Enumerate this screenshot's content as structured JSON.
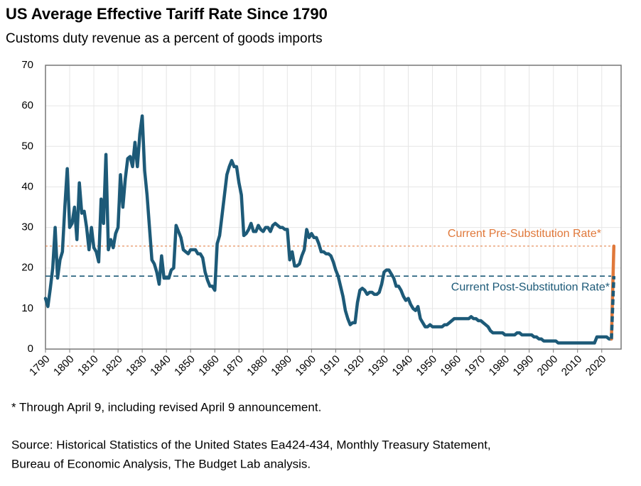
{
  "chart_data": {
    "type": "line",
    "title": "US Average Effective Tariff Rate Since 1790",
    "subtitle": "Customs duty revenue as a percent of goods imports",
    "footnote": "* Through April 9, including revised April 9 announcement.",
    "source": [
      "Source: Historical Statistics of the United States Ea424-434, Monthly Treasury Statement,",
      "Bureau of  Economic Analysis, The Budget Lab analysis."
    ],
    "xlim": [
      1790,
      2028
    ],
    "ylim": [
      0,
      70
    ],
    "xticks": [
      1790,
      1800,
      1810,
      1820,
      1830,
      1840,
      1850,
      1860,
      1870,
      1880,
      1890,
      1900,
      1910,
      1920,
      1930,
      1940,
      1950,
      1960,
      1970,
      1980,
      1990,
      2000,
      2010,
      2020
    ],
    "yticks": [
      0,
      10,
      20,
      30,
      40,
      50,
      60,
      70
    ],
    "grid": true,
    "reference_lines": [
      {
        "value": 25.4,
        "label": "Current Pre-Substitution Rate*",
        "color": "#e0783a",
        "style": "dotted",
        "label_position": "above"
      },
      {
        "value": 18,
        "label": "Current Post-Substitution Rate*",
        "color": "#1d5a78",
        "style": "dashed",
        "label_position": "below"
      }
    ],
    "series": [
      {
        "color": "#1d5a78",
        "style": "solid",
        "x": [
          1790,
          1791,
          1792,
          1793,
          1794,
          1795,
          1796,
          1797,
          1798,
          1799,
          1800,
          1801,
          1802,
          1803,
          1804,
          1805,
          1806,
          1807,
          1808,
          1809,
          1810,
          1811,
          1812,
          1813,
          1814,
          1815,
          1816,
          1817,
          1818,
          1819,
          1820,
          1821,
          1822,
          1823,
          1824,
          1825,
          1826,
          1827,
          1828,
          1829,
          1830,
          1831,
          1832,
          1833,
          1834,
          1835,
          1836,
          1837,
          1838,
          1839,
          1840,
          1841,
          1842,
          1843,
          1844,
          1845,
          1846,
          1847,
          1848,
          1849,
          1850,
          1851,
          1852,
          1853,
          1854,
          1855,
          1856,
          1857,
          1858,
          1859,
          1860,
          1861,
          1862,
          1863,
          1864,
          1865,
          1866,
          1867,
          1868,
          1869,
          1870,
          1871,
          1872,
          1873,
          1874,
          1875,
          1876,
          1877,
          1878,
          1879,
          1880,
          1881,
          1882,
          1883,
          1884,
          1885,
          1886,
          1887,
          1888,
          1889,
          1890,
          1891,
          1892,
          1893,
          1894,
          1895,
          1896,
          1897,
          1898,
          1899,
          1900,
          1901,
          1902,
          1903,
          1904,
          1905,
          1906,
          1907,
          1908,
          1909,
          1910,
          1911,
          1912,
          1913,
          1914,
          1915,
          1916,
          1917,
          1918,
          1919,
          1920,
          1921,
          1922,
          1923,
          1924,
          1925,
          1926,
          1927,
          1928,
          1929,
          1930,
          1931,
          1932,
          1933,
          1934,
          1935,
          1936,
          1937,
          1938,
          1939,
          1940,
          1941,
          1942,
          1943,
          1944,
          1945,
          1946,
          1947,
          1948,
          1949,
          1950,
          1951,
          1952,
          1953,
          1954,
          1955,
          1956,
          1957,
          1958,
          1959,
          1960,
          1961,
          1962,
          1963,
          1964,
          1965,
          1966,
          1967,
          1968,
          1969,
          1970,
          1971,
          1972,
          1973,
          1974,
          1975,
          1976,
          1977,
          1978,
          1979,
          1980,
          1981,
          1982,
          1983,
          1984,
          1985,
          1986,
          1987,
          1988,
          1989,
          1990,
          1991,
          1992,
          1993,
          1994,
          1995,
          1996,
          1997,
          1998,
          1999,
          2000,
          2001,
          2002,
          2003,
          2004,
          2005,
          2006,
          2007,
          2008,
          2009,
          2010,
          2011,
          2012,
          2013,
          2014,
          2015,
          2016,
          2017,
          2018,
          2019,
          2020,
          2021,
          2022,
          2023,
          2024
        ],
        "values": [
          12.5,
          10.5,
          15,
          20,
          30,
          17.5,
          22,
          24,
          35,
          44.5,
          30,
          31,
          35,
          27,
          41,
          33.5,
          34,
          30,
          24.5,
          30,
          25,
          24,
          21.5,
          37,
          31,
          48,
          24.5,
          27,
          25,
          28.5,
          30,
          43,
          35,
          42,
          47,
          47.5,
          45,
          51,
          45,
          53,
          57.5,
          44,
          38,
          30,
          22,
          21,
          19,
          16,
          23,
          17.5,
          17.5,
          17.5,
          19.5,
          20,
          30.5,
          29,
          27.5,
          24.5,
          24,
          23.5,
          24.5,
          24.5,
          24.5,
          23.5,
          23.5,
          22.5,
          19,
          17,
          15.5,
          15.5,
          14.5,
          26,
          28,
          33,
          38,
          43,
          45,
          46.5,
          45,
          45,
          41,
          38,
          28,
          28.5,
          29.5,
          31,
          29,
          29,
          30.5,
          29.5,
          29,
          30,
          30,
          29,
          30.5,
          31,
          30.5,
          30,
          30,
          29.5,
          29.5,
          22,
          24,
          20.5,
          20.5,
          21,
          23,
          24.5,
          29.5,
          27.5,
          28.5,
          27.5,
          27.5,
          26,
          24,
          24,
          23.5,
          23.5,
          23,
          21.5,
          19.5,
          18,
          15.5,
          13,
          9.5,
          7.5,
          6,
          6.5,
          6.5,
          11.5,
          14.5,
          15,
          14.5,
          13.5,
          14,
          14,
          13.5,
          13.5,
          14,
          16,
          19,
          19.5,
          19.5,
          18.5,
          17.5,
          15.5,
          15.5,
          14.5,
          13,
          12,
          12.5,
          11,
          10,
          9.5,
          10.5,
          7.5,
          6.5,
          5.5,
          5.5,
          6,
          5.5,
          5.5,
          5.5,
          5.5,
          5.5,
          6,
          6,
          6.5,
          7,
          7.5,
          7.5,
          7.5,
          7.5,
          7.5,
          7.5,
          7.5,
          8,
          7.5,
          7.5,
          7,
          7,
          6.5,
          6,
          5.5,
          4.5,
          4,
          4,
          4,
          4,
          4,
          3.5,
          3.5,
          3.5,
          3.5,
          3.5,
          4,
          4,
          3.5,
          3.5,
          3.5,
          3.5,
          3.5,
          3,
          3,
          2.5,
          2.5,
          2,
          2,
          2,
          2,
          2,
          2,
          1.5,
          1.5,
          1.5,
          1.5,
          1.5,
          1.5,
          1.5,
          1.5,
          1.5,
          1.5,
          1.5,
          1.5,
          1.5,
          1.5,
          1.5,
          1.5,
          3,
          3,
          3,
          3,
          3,
          2.5,
          2.5
        ]
      },
      {
        "color": "#e0783a",
        "style": "solid",
        "x": [
          2024,
          2025
        ],
        "values": [
          2.5,
          25.4
        ]
      },
      {
        "color": "#1d5a78",
        "style": "dashed",
        "x": [
          2024,
          2025
        ],
        "values": [
          2.5,
          18
        ]
      }
    ]
  }
}
